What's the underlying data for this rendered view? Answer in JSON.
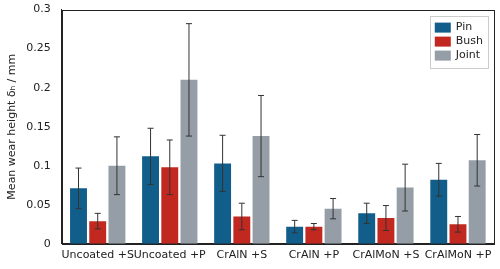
{
  "chart_data": {
    "type": "bar",
    "categories": [
      "Uncoated +S",
      "Uncoated +P",
      "CrAlN +S",
      "CrAlN +P",
      "CrAlMoN +S",
      "CrAlMoN +P"
    ],
    "series": [
      {
        "name": "Pin",
        "color": "#115e8b",
        "values": [
          0.071,
          0.112,
          0.103,
          0.022,
          0.039,
          0.082
        ],
        "errors": [
          0.026,
          0.036,
          0.036,
          0.008,
          0.013,
          0.021
        ]
      },
      {
        "name": "Bush",
        "color": "#c1281f",
        "values": [
          0.029,
          0.098,
          0.035,
          0.022,
          0.033,
          0.025
        ],
        "errors": [
          0.01,
          0.035,
          0.017,
          0.004,
          0.016,
          0.01
        ]
      },
      {
        "name": "Joint",
        "color": "#959ea6",
        "values": [
          0.1,
          0.21,
          0.138,
          0.045,
          0.072,
          0.107
        ],
        "errors": [
          0.037,
          0.072,
          0.052,
          0.013,
          0.03,
          0.033
        ]
      }
    ],
    "ylabel": "Mean wear height δₕ / mm",
    "ylim": [
      0,
      0.3
    ],
    "yticks": [
      0,
      0.05,
      0.1,
      0.15,
      0.2,
      0.25,
      0.3
    ],
    "grid": false,
    "legend": "upper right"
  }
}
